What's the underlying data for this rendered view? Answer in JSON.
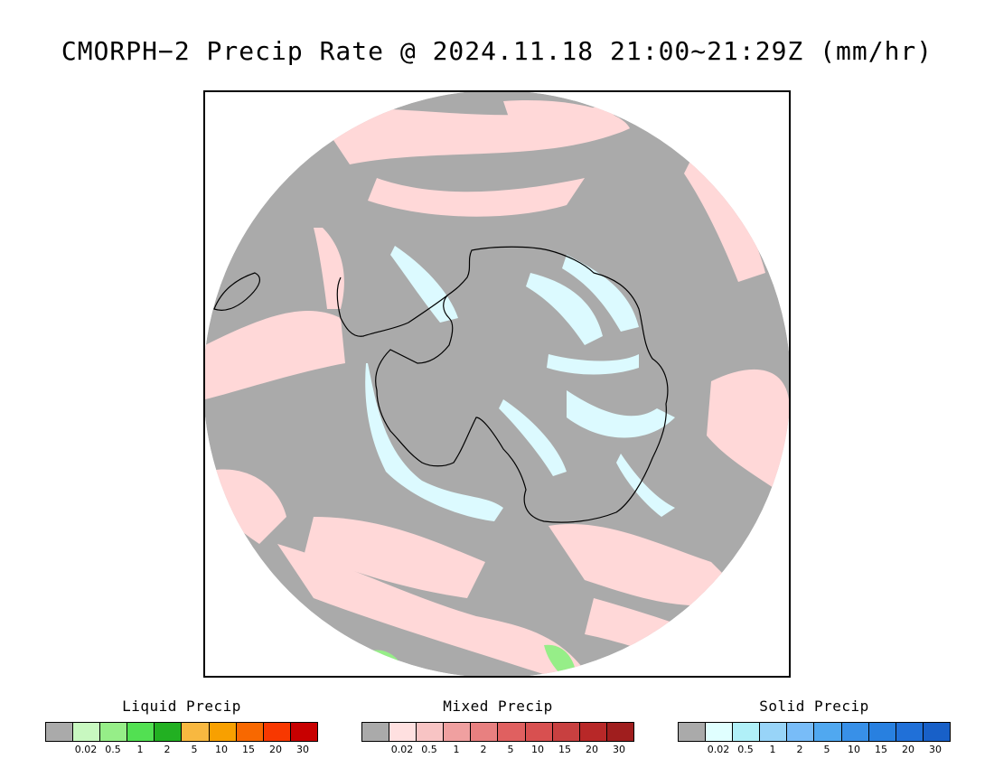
{
  "title": "CMORPH−2 Precip Rate @ 2024.11.18 21:00~21:29Z (mm/hr)",
  "map": {
    "projection": "south-polar-stereographic",
    "background_color": "#aaaaaa",
    "continent": "Antarctica"
  },
  "legends": [
    {
      "title": "Liquid Precip",
      "colors": [
        "#aaaaaa",
        "#c8f8c0",
        "#96ee88",
        "#52e052",
        "#22b022",
        "#f8b840",
        "#f8a000",
        "#f86800",
        "#f83800",
        "#c80000"
      ],
      "ticks": [
        "0.02",
        "0.5",
        "1",
        "2",
        "5",
        "10",
        "15",
        "20",
        "30"
      ]
    },
    {
      "title": "Mixed Precip",
      "colors": [
        "#aaaaaa",
        "#ffe0e0",
        "#f8c4c4",
        "#f0a0a0",
        "#e88080",
        "#e06060",
        "#d85050",
        "#c84040",
        "#b82828",
        "#a01e1e"
      ],
      "ticks": [
        "0.02",
        "0.5",
        "1",
        "2",
        "5",
        "10",
        "15",
        "20",
        "30"
      ]
    },
    {
      "title": "Solid Precip",
      "colors": [
        "#aaaaaa",
        "#e0ffff",
        "#b0f0f8",
        "#98d4f8",
        "#78bcf8",
        "#50a8f0",
        "#3890e8",
        "#2880e0",
        "#2070d8",
        "#1860c8"
      ],
      "ticks": [
        "0.02",
        "0.5",
        "1",
        "2",
        "5",
        "10",
        "15",
        "20",
        "30"
      ]
    }
  ]
}
